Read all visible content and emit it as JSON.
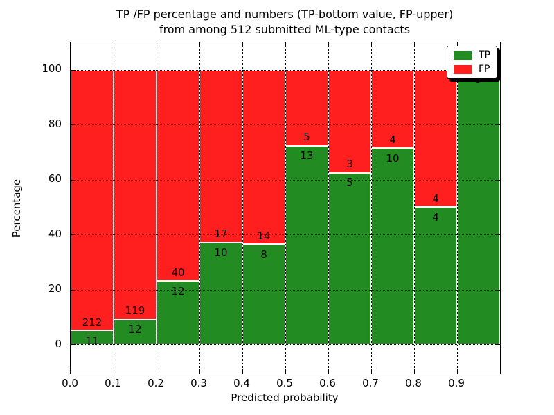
{
  "figure": {
    "title_line1": "TP /FP percentage and numbers (TP-bottom value, FP-upper)",
    "title_line2": "from among 512 submitted ML-type contacts"
  },
  "chart_data": {
    "type": "bar",
    "stacked": true,
    "normalized_to_percent": true,
    "title": "TP /FP percentage and numbers (TP-bottom value, FP-upper) from among 512 submitted ML-type contacts",
    "xlabel": "Predicted probability",
    "ylabel": "Percentage",
    "total_contacts": 512,
    "x_tick_labels": [
      "0.0",
      "0.1",
      "0.2",
      "0.3",
      "0.4",
      "0.5",
      "0.6",
      "0.7",
      "0.8",
      "0.9"
    ],
    "y_tick_labels": [
      "0",
      "20",
      "40",
      "60",
      "80",
      "100"
    ],
    "y_ticks": [
      0,
      20,
      40,
      60,
      80,
      100
    ],
    "xlim": [
      0.0,
      1.0
    ],
    "ylim": [
      -10.6,
      110.0
    ],
    "bin_width": 0.1,
    "grid": "black dotted, both axes, drawn above bars",
    "legend": {
      "position": "upper right",
      "shadow": true,
      "entries": [
        {
          "label": "TP",
          "color": "#228b22"
        },
        {
          "label": "FP",
          "color": "#ff1f1f"
        }
      ]
    },
    "series": [
      {
        "name": "TP",
        "role": "bottom",
        "counts": [
          11,
          12,
          12,
          10,
          8,
          13,
          5,
          10,
          4,
          9
        ]
      },
      {
        "name": "FP",
        "role": "top",
        "counts": [
          212,
          119,
          40,
          17,
          14,
          5,
          3,
          4,
          4,
          0
        ]
      }
    ],
    "bins": [
      {
        "x_start": 0.0,
        "x_end": 0.1,
        "tp": 11,
        "fp": 212,
        "tp_pct": 4.9
      },
      {
        "x_start": 0.1,
        "x_end": 0.2,
        "tp": 12,
        "fp": 119,
        "tp_pct": 9.2
      },
      {
        "x_start": 0.2,
        "x_end": 0.3,
        "tp": 12,
        "fp": 40,
        "tp_pct": 23.1
      },
      {
        "x_start": 0.3,
        "x_end": 0.4,
        "tp": 10,
        "fp": 17,
        "tp_pct": 37.0
      },
      {
        "x_start": 0.4,
        "x_end": 0.5,
        "tp": 8,
        "fp": 14,
        "tp_pct": 36.4
      },
      {
        "x_start": 0.5,
        "x_end": 0.6,
        "tp": 13,
        "fp": 5,
        "tp_pct": 72.2
      },
      {
        "x_start": 0.6,
        "x_end": 0.7,
        "tp": 5,
        "fp": 3,
        "tp_pct": 62.5
      },
      {
        "x_start": 0.7,
        "x_end": 0.8,
        "tp": 10,
        "fp": 4,
        "tp_pct": 71.4
      },
      {
        "x_start": 0.8,
        "x_end": 0.9,
        "tp": 4,
        "fp": 4,
        "tp_pct": 50.0
      },
      {
        "x_start": 0.9,
        "x_end": 1.0,
        "tp": 9,
        "fp": 0,
        "tp_pct": 100.0
      }
    ],
    "colors": {
      "tp": "#228b22",
      "fp": "#ff1f1f",
      "grid": "#000000",
      "bar_edge": "#ffffff"
    }
  }
}
